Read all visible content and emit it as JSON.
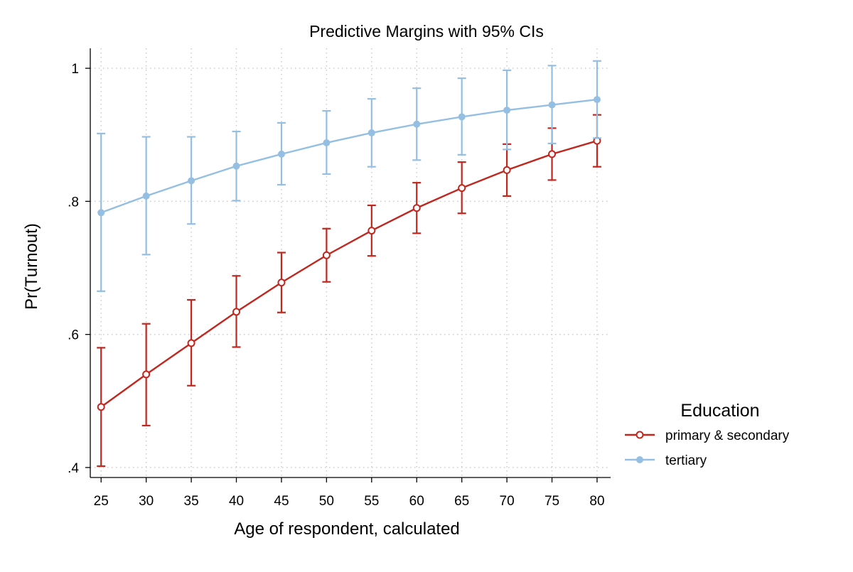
{
  "chart_data": {
    "type": "line",
    "title": "Predictive Margins with 95% CIs",
    "xlabel": "Age of respondent, calculated",
    "ylabel": "Pr(Turnout)",
    "x": [
      25,
      30,
      35,
      40,
      45,
      50,
      55,
      60,
      65,
      70,
      75,
      80
    ],
    "x_ticks": [
      {
        "value": 25,
        "label": "25"
      },
      {
        "value": 30,
        "label": "30"
      },
      {
        "value": 35,
        "label": "35"
      },
      {
        "value": 40,
        "label": "40"
      },
      {
        "value": 45,
        "label": "45"
      },
      {
        "value": 50,
        "label": "50"
      },
      {
        "value": 55,
        "label": "55"
      },
      {
        "value": 60,
        "label": "60"
      },
      {
        "value": 65,
        "label": "65"
      },
      {
        "value": 70,
        "label": "70"
      },
      {
        "value": 75,
        "label": "75"
      },
      {
        "value": 80,
        "label": "80"
      }
    ],
    "y_ticks": [
      {
        "value": 0.4,
        "label": ".4"
      },
      {
        "value": 0.6,
        "label": ".6"
      },
      {
        "value": 0.8,
        "label": ".8"
      },
      {
        "value": 1.0,
        "label": "1"
      }
    ],
    "xlim": [
      23.8,
      81.5
    ],
    "ylim": [
      0.385,
      1.03
    ],
    "grid": true,
    "legend": {
      "title": "Education",
      "placement": "right"
    },
    "series": [
      {
        "name": "primary & secondary",
        "color": "#c0281f",
        "marker": "hollow-circle",
        "values": [
          0.491,
          0.54,
          0.587,
          0.634,
          0.678,
          0.719,
          0.756,
          0.79,
          0.82,
          0.847,
          0.871,
          0.891
        ],
        "ci_lower": [
          0.402,
          0.463,
          0.523,
          0.581,
          0.633,
          0.679,
          0.718,
          0.752,
          0.782,
          0.808,
          0.832,
          0.852
        ],
        "ci_upper": [
          0.58,
          0.616,
          0.652,
          0.688,
          0.723,
          0.759,
          0.794,
          0.828,
          0.859,
          0.886,
          0.91,
          0.93
        ]
      },
      {
        "name": "tertiary",
        "color": "#94bfe2",
        "marker": "filled-circle",
        "values": [
          0.783,
          0.808,
          0.831,
          0.853,
          0.871,
          0.888,
          0.903,
          0.916,
          0.927,
          0.937,
          0.945,
          0.953
        ],
        "ci_lower": [
          0.665,
          0.72,
          0.766,
          0.801,
          0.825,
          0.841,
          0.852,
          0.862,
          0.87,
          0.878,
          0.887,
          0.895
        ],
        "ci_upper": [
          0.902,
          0.897,
          0.897,
          0.905,
          0.918,
          0.936,
          0.954,
          0.97,
          0.985,
          0.997,
          1.004,
          1.011
        ]
      }
    ]
  }
}
